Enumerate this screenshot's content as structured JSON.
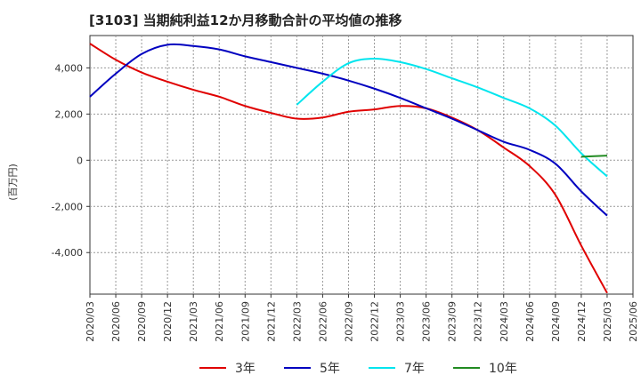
{
  "chart_data": {
    "type": "line",
    "title": "[3103]  当期純利益12か月移動合計の平均値の推移",
    "ylabel": "(百万円)",
    "xlabel": "",
    "ylim": [
      -5800,
      5400
    ],
    "y_ticks": [
      4000,
      2000,
      0,
      -2000,
      -4000
    ],
    "y_tick_labels": [
      "4,000",
      "2,000",
      "0",
      "-2,000",
      "-4,000"
    ],
    "x_tick_labels": [
      "2020/03",
      "2020/06",
      "2020/09",
      "2020/12",
      "2021/03",
      "2021/06",
      "2021/09",
      "2021/12",
      "2022/03",
      "2022/06",
      "2022/09",
      "2022/12",
      "2023/03",
      "2023/06",
      "2023/09",
      "2023/12",
      "2024/03",
      "2024/06",
      "2024/09",
      "2024/12",
      "2025/03",
      "2025/06"
    ],
    "grid": true,
    "legend_position": "bottom",
    "series": [
      {
        "name": "3年",
        "color": "#e00000",
        "x": [
          "2020/03",
          "2020/06",
          "2020/09",
          "2020/12",
          "2021/03",
          "2021/06",
          "2021/09",
          "2021/12",
          "2022/03",
          "2022/06",
          "2022/09",
          "2022/12",
          "2023/03",
          "2023/06",
          "2023/09",
          "2023/12",
          "2024/03",
          "2024/06",
          "2024/09",
          "2024/12",
          "2025/03"
        ],
        "values": [
          5050,
          4350,
          3800,
          3400,
          3050,
          2750,
          2350,
          2050,
          1800,
          1850,
          2100,
          2200,
          2350,
          2250,
          1850,
          1300,
          550,
          -250,
          -1500,
          -3700,
          -5750
        ]
      },
      {
        "name": "5年",
        "color": "#0000c0",
        "x": [
          "2020/03",
          "2020/06",
          "2020/09",
          "2020/12",
          "2021/03",
          "2021/06",
          "2021/09",
          "2021/12",
          "2022/03",
          "2022/06",
          "2022/09",
          "2022/12",
          "2023/03",
          "2023/06",
          "2023/09",
          "2023/12",
          "2024/03",
          "2024/06",
          "2024/09",
          "2024/12",
          "2025/03"
        ],
        "values": [
          2750,
          3750,
          4600,
          5000,
          4950,
          4800,
          4500,
          4250,
          4000,
          3750,
          3450,
          3100,
          2700,
          2250,
          1800,
          1300,
          800,
          450,
          -150,
          -1350,
          -2400
        ]
      },
      {
        "name": "7年",
        "color": "#00e5ee",
        "x": [
          "2022/03",
          "2022/06",
          "2022/09",
          "2022/12",
          "2023/03",
          "2023/06",
          "2023/09",
          "2023/12",
          "2024/03",
          "2024/06",
          "2024/09",
          "2024/12",
          "2025/03"
        ],
        "values": [
          2400,
          3400,
          4200,
          4400,
          4250,
          3950,
          3550,
          3150,
          2700,
          2250,
          1500,
          300,
          -700
        ]
      },
      {
        "name": "10年",
        "color": "#228b22",
        "x": [
          "2024/12",
          "2025/03"
        ],
        "values": [
          150,
          200
        ]
      }
    ]
  }
}
